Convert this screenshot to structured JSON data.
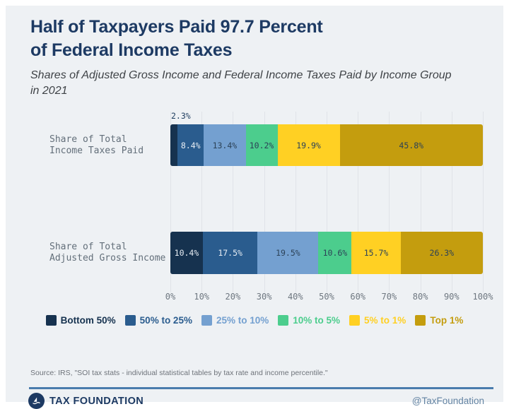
{
  "header": {
    "title_line1": "Half of Taxpayers Paid 97.7 Percent",
    "title_line2": "of Federal Income Taxes",
    "subtitle_line1": "Shares of Adjusted Gross Income and Federal Income Taxes Paid by Income Group",
    "subtitle_line2": "in 2021"
  },
  "chart_data": {
    "type": "bar",
    "orientation": "horizontal",
    "stacked": true,
    "xlim": [
      0,
      100
    ],
    "x_ticks": [
      "0%",
      "10%",
      "20%",
      "30%",
      "40%",
      "50%",
      "60%",
      "70%",
      "80%",
      "90%",
      "100%"
    ],
    "grid": true,
    "legend_position": "bottom-center",
    "rows": [
      {
        "label_lines": [
          "Share of Total",
          "Income Taxes Paid"
        ],
        "values": [
          2.3,
          8.4,
          13.4,
          10.2,
          19.9,
          45.8
        ]
      },
      {
        "label_lines": [
          "Share of Total",
          "Adjusted Gross Income"
        ],
        "values": [
          10.4,
          17.5,
          19.5,
          10.6,
          15.7,
          26.3
        ]
      }
    ],
    "series": [
      {
        "name": "Bottom 50%",
        "color": "#16324f",
        "label_on_dark": true
      },
      {
        "name": "50% to 25%",
        "color": "#2a5c8e",
        "label_on_dark": true
      },
      {
        "name": "25% to 10%",
        "color": "#74a0d0",
        "label_on_dark": false
      },
      {
        "name": "10% to 5%",
        "color": "#4ccd8d",
        "label_on_dark": false
      },
      {
        "name": "5% to 1%",
        "color": "#ffd023",
        "label_on_dark": false
      },
      {
        "name": "Top 1%",
        "color": "#c49d0e",
        "label_on_dark": false
      }
    ],
    "outside_label": {
      "row": 0,
      "series": 0,
      "text": "2.3%"
    },
    "min_label_width_pct": 4
  },
  "footer": {
    "source": "Source: IRS, \"SOI tax stats - individual statistical tables by tax rate and income percentile.\"",
    "brand": "TAX FOUNDATION",
    "handle": "@TaxFoundation",
    "logo_icon": "tax-foundation-emblem"
  },
  "colors": {
    "background": "#eef1f4",
    "frame": "#ffffff",
    "title": "#1d3a63",
    "gridline": "#e0e3e8",
    "label_light": "#e8eef4",
    "label_dark": "#2c4257",
    "rule": "#4a7cad"
  }
}
